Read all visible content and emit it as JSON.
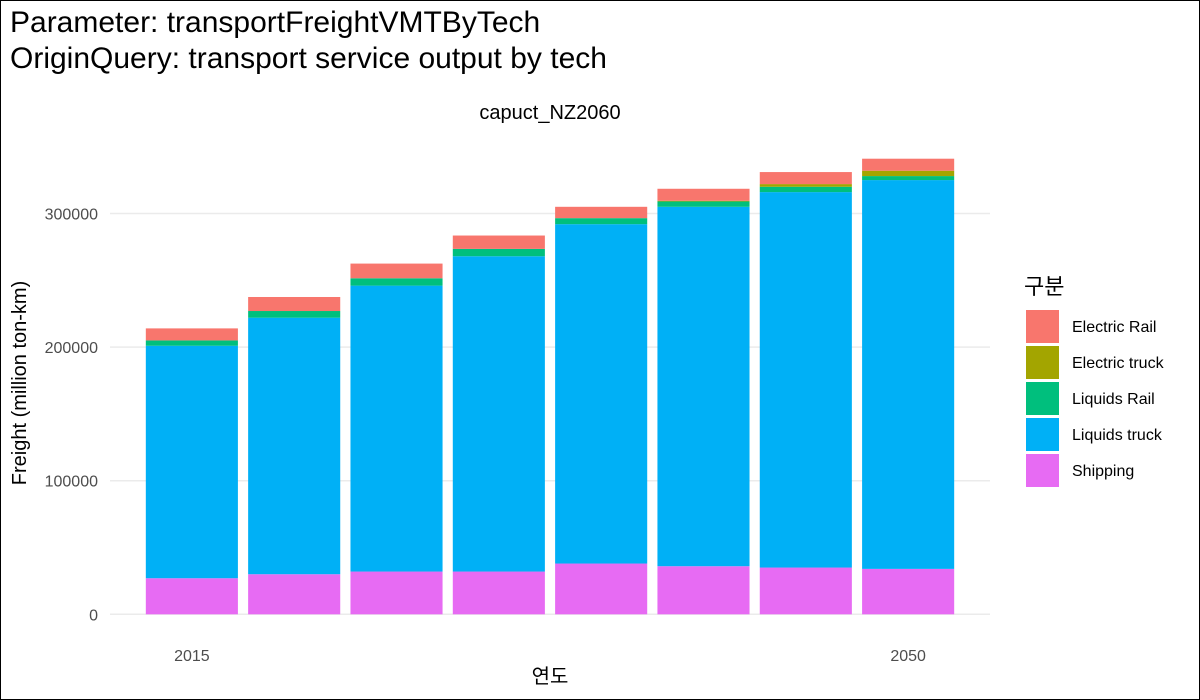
{
  "header": {
    "line1": "Parameter: transportFreightVMTByTech",
    "line2": "OriginQuery: transport service output by tech"
  },
  "chart_data": {
    "type": "bar",
    "stacked": true,
    "title": "capuct_NZ2060",
    "xlabel": "연도",
    "ylabel": "Freight (million ton-km)",
    "x": [
      2015,
      2020,
      2025,
      2030,
      2035,
      2040,
      2045,
      2050
    ],
    "x_tick_labels": [
      "2015",
      "2050"
    ],
    "x_tick_values": [
      2015,
      2050
    ],
    "xlim": [
      2011,
      2054
    ],
    "ylim": [
      -8000,
      355000
    ],
    "y_ticks": [
      0,
      100000,
      200000,
      300000
    ],
    "y_tick_labels": [
      "0",
      "100000",
      "200000",
      "300000"
    ],
    "grid": true,
    "legend": {
      "title": "구분",
      "position": "right"
    },
    "series": [
      {
        "name": "Shipping",
        "color": "#E76BF3",
        "values": [
          27000,
          30000,
          32000,
          32000,
          38000,
          36000,
          35000,
          34000
        ]
      },
      {
        "name": "Liquids truck",
        "color": "#00B0F6",
        "values": [
          174000,
          192000,
          214000,
          236000,
          254000,
          269000,
          281000,
          291000
        ]
      },
      {
        "name": "Liquids Rail",
        "color": "#00BF7D",
        "values": [
          4000,
          5000,
          5500,
          5500,
          4500,
          4000,
          4000,
          3000
        ]
      },
      {
        "name": "Electric truck",
        "color": "#A3A500",
        "values": [
          0,
          0,
          0,
          0,
          0,
          500,
          2000,
          4000
        ]
      },
      {
        "name": "Electric Rail",
        "color": "#F8766D",
        "values": [
          9000,
          10500,
          11000,
          10000,
          8500,
          9000,
          9000,
          9000
        ]
      }
    ],
    "legend_order": [
      "Electric Rail",
      "Electric truck",
      "Liquids Rail",
      "Liquids truck",
      "Shipping"
    ]
  }
}
